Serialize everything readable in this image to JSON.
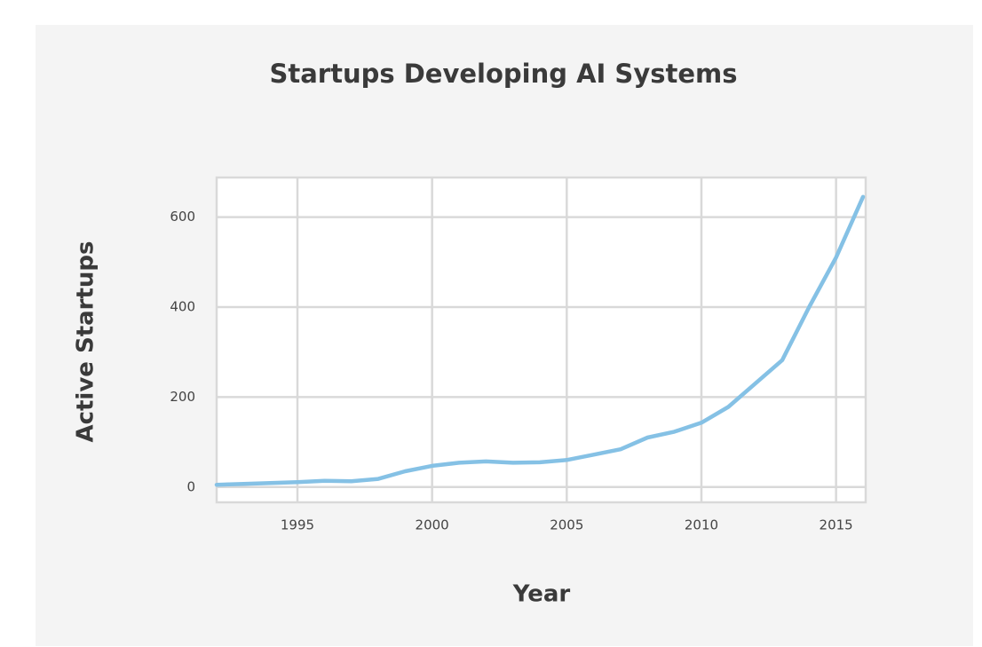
{
  "chart_data": {
    "type": "line",
    "title": "Startups Developing AI Systems",
    "x_label": "Year",
    "y_label": "Active Startups",
    "x": [
      1992,
      1993,
      1994,
      1995,
      1996,
      1997,
      1998,
      1999,
      2000,
      2001,
      2002,
      2003,
      2004,
      2005,
      2006,
      2007,
      2008,
      2009,
      2010,
      2011,
      2012,
      2013,
      2014,
      2015,
      2016
    ],
    "series": [
      {
        "name": "Active Startups",
        "color": "#85c1e5",
        "values": [
          5,
          7,
          9,
          11,
          14,
          13,
          18,
          35,
          47,
          54,
          57,
          54,
          55,
          60,
          72,
          84,
          110,
          123,
          143,
          178,
          230,
          282,
          400,
          510,
          645
        ]
      }
    ],
    "xlim": [
      1992,
      2016.1
    ],
    "xticks": [
      1995,
      2000,
      2005,
      2010,
      2015
    ],
    "ylim": [
      -34,
      688
    ],
    "yticks": [
      0,
      200,
      400,
      600
    ],
    "grid": true
  }
}
